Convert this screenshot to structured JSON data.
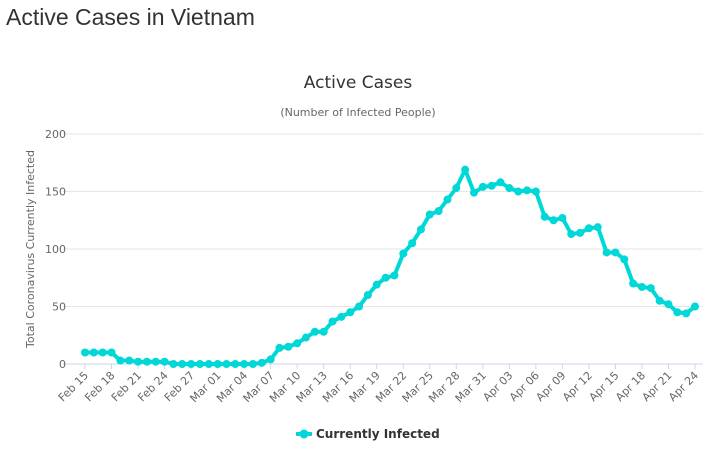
{
  "page_title": "Active Cases in Vietnam",
  "chart_data": {
    "type": "line",
    "title": "Active Cases",
    "subtitle": "(Number of Infected People)",
    "ylabel": "Total Coronavirus Currently Infected",
    "xlabel": "",
    "ylim": [
      0,
      200
    ],
    "yticks": [
      0,
      50,
      100,
      150,
      200
    ],
    "grid": true,
    "legend_position": "bottom-center",
    "color": "#00d8d8",
    "xtick_labels": [
      "Feb 15",
      "Feb 18",
      "Feb 21",
      "Feb 24",
      "Feb 27",
      "Mar 01",
      "Mar 04",
      "Mar 07",
      "Mar 10",
      "Mar 13",
      "Mar 16",
      "Mar 19",
      "Mar 22",
      "Mar 25",
      "Mar 28",
      "Mar 31",
      "Apr 03",
      "Apr 06",
      "Apr 09",
      "Apr 12",
      "Apr 15",
      "Apr 18",
      "Apr 21",
      "Apr 24"
    ],
    "xtick_every": 3,
    "series": [
      {
        "name": "Currently Infected",
        "values": [
          10,
          10,
          10,
          10,
          3,
          3,
          2,
          2,
          2,
          2,
          0,
          0,
          0,
          0,
          0,
          0,
          0,
          0,
          0,
          0,
          1,
          4,
          14,
          15,
          18,
          23,
          28,
          28,
          37,
          41,
          45,
          50,
          60,
          69,
          75,
          77,
          96,
          105,
          117,
          130,
          133,
          143,
          153,
          169,
          149,
          154,
          155,
          158,
          153,
          150,
          151,
          150,
          128,
          125,
          127,
          113,
          114,
          118,
          119,
          97,
          97,
          91,
          70,
          67,
          66,
          55,
          52,
          45,
          44,
          50
        ]
      }
    ]
  }
}
